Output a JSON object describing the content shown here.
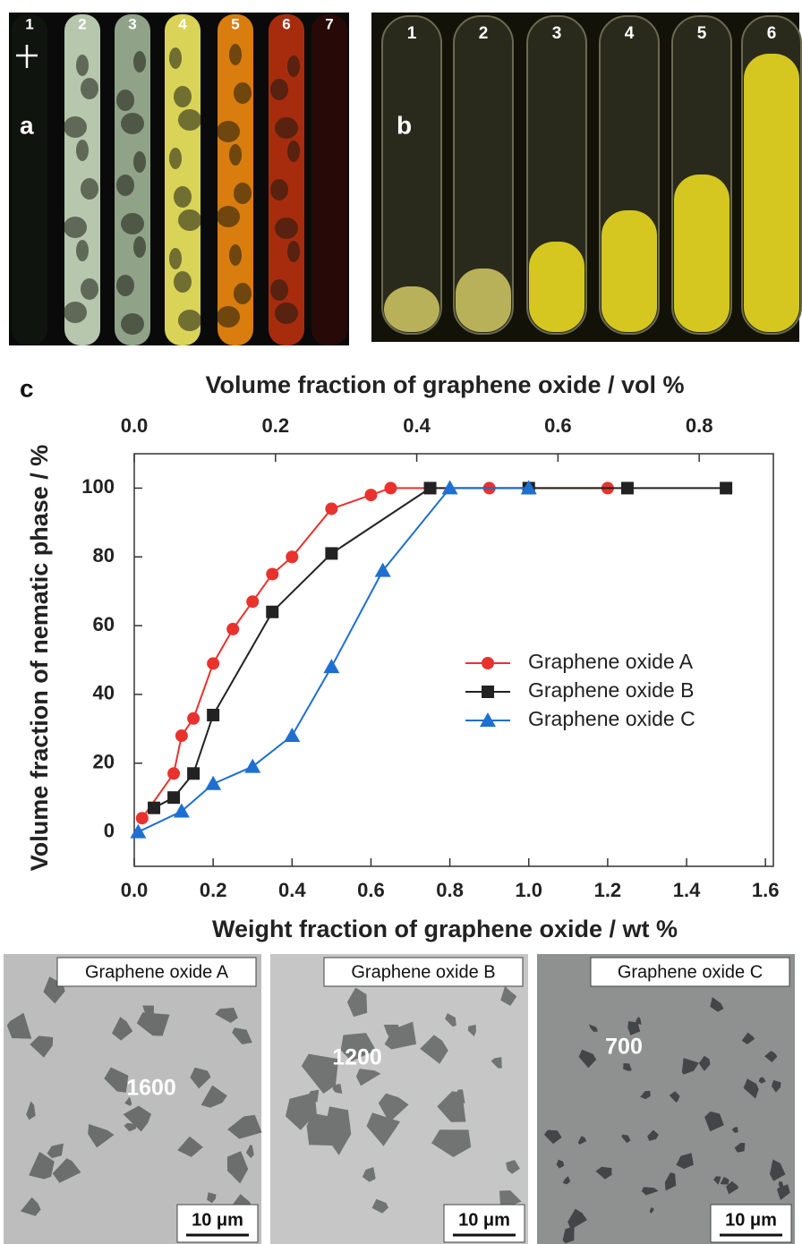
{
  "panel_a": {
    "label": "a",
    "tubes": [
      "1",
      "2",
      "3",
      "4",
      "5",
      "6",
      "7"
    ]
  },
  "panel_b": {
    "label": "b",
    "tubes": [
      "1",
      "2",
      "3",
      "4",
      "5",
      "6"
    ]
  },
  "chart_data": {
    "type": "line",
    "panel_label": "c",
    "xlabel": "Weight fraction of graphene oxide / wt %",
    "x2label": "Volume fraction of graphene oxide / vol %",
    "ylabel": "Volume fraction of nematic phase / %",
    "xlim": [
      0,
      1.62
    ],
    "xticks": [
      {
        "value": 0,
        "label": "0.0"
      },
      0.2,
      0.4,
      0.6,
      0.8,
      {
        "value": 1,
        "label": "1.0"
      },
      1.2,
      1.4,
      1.6
    ],
    "x2lim": [
      0,
      0.905
    ],
    "x2ticks": [
      {
        "value": 0,
        "label": "0.0"
      },
      0.2,
      0.4,
      0.6,
      0.8
    ],
    "ylim": [
      -10,
      110
    ],
    "yticks": [
      0,
      20,
      40,
      60,
      80,
      100
    ],
    "legend": "right",
    "series": [
      {
        "name": "Graphene oxide A",
        "color": "#e8322e",
        "marker": "circle",
        "x": [
          0.02,
          0.1,
          0.12,
          0.15,
          0.2,
          0.25,
          0.3,
          0.35,
          0.4,
          0.5,
          0.6,
          0.65,
          0.9,
          1.0,
          1.2
        ],
        "values": [
          4,
          17,
          28,
          33,
          49,
          59,
          67,
          75,
          80,
          94,
          98,
          100,
          100,
          100,
          100
        ]
      },
      {
        "name": "Graphene oxide B",
        "color": "#222222",
        "marker": "square",
        "x": [
          0.05,
          0.1,
          0.15,
          0.2,
          0.35,
          0.5,
          0.75,
          1.0,
          1.25,
          1.5
        ],
        "values": [
          7,
          10,
          17,
          34,
          64,
          81,
          100,
          100,
          100,
          100
        ]
      },
      {
        "name": "Graphene oxide C",
        "color": "#1f6fd1",
        "marker": "triangle",
        "x": [
          0.01,
          0.12,
          0.2,
          0.3,
          0.4,
          0.5,
          0.63,
          0.8,
          1.0
        ],
        "values": [
          0,
          6,
          14,
          19,
          28,
          48,
          76,
          100,
          100
        ]
      }
    ]
  },
  "micrographs": [
    {
      "title": "Graphene oxide A",
      "size": "1600",
      "scale": "10 μm"
    },
    {
      "title": "Graphene oxide B",
      "size": "1200",
      "scale": "10 μm"
    },
    {
      "title": "Graphene oxide C",
      "size": "700",
      "scale": "10 μm"
    }
  ]
}
